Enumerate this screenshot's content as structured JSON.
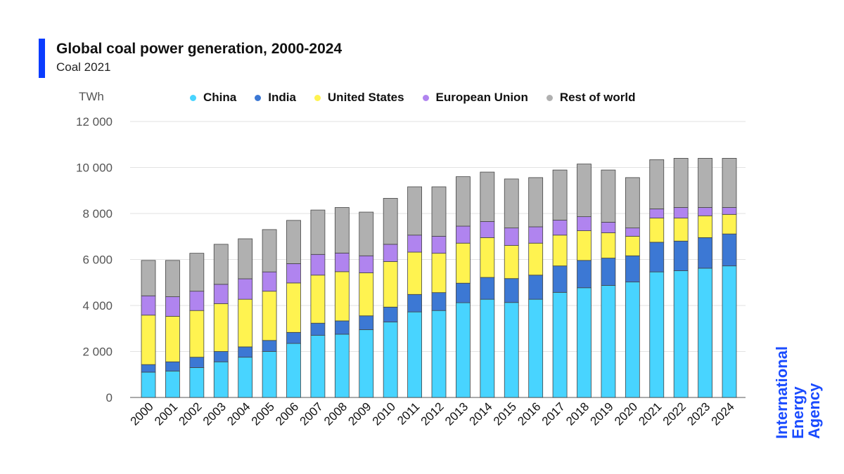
{
  "header": {
    "title": "Global coal power generation, 2000-2024",
    "subtitle": "Coal 2021"
  },
  "logo": {
    "line1": "International",
    "line2": "Energy Agency",
    "color": "#1a4bff"
  },
  "chart_data": {
    "type": "bar",
    "stacked": true,
    "title": "Global coal power generation, 2000-2024",
    "subtitle": "Coal 2021",
    "ylabel": "TWh",
    "ylim": [
      0,
      12000
    ],
    "yticks": [
      0,
      2000,
      4000,
      6000,
      8000,
      10000,
      12000
    ],
    "ytick_labels": [
      "0",
      "2 000",
      "4 000",
      "6 000",
      "8 000",
      "10 000",
      "12 000"
    ],
    "grid": true,
    "legend_position": "top",
    "categories": [
      "2000",
      "2001",
      "2002",
      "2003",
      "2004",
      "2005",
      "2006",
      "2007",
      "2008",
      "2009",
      "2010",
      "2011",
      "2012",
      "2013",
      "2014",
      "2015",
      "2016",
      "2017",
      "2018",
      "2019",
      "2020",
      "2021",
      "2022",
      "2023",
      "2024"
    ],
    "series": [
      {
        "name": "China",
        "color": "#48d4ff",
        "values": [
          1100,
          1150,
          1300,
          1550,
          1750,
          2000,
          2350,
          2700,
          2750,
          2950,
          3280,
          3720,
          3780,
          4120,
          4270,
          4130,
          4270,
          4570,
          4770,
          4870,
          5020,
          5460,
          5510,
          5620,
          5720
        ]
      },
      {
        "name": "India",
        "color": "#3c78d4",
        "values": [
          330,
          400,
          450,
          450,
          450,
          480,
          480,
          530,
          580,
          600,
          650,
          760,
          780,
          850,
          950,
          1040,
          1050,
          1150,
          1190,
          1190,
          1140,
          1290,
          1290,
          1330,
          1390
        ]
      },
      {
        "name": "United States",
        "color": "#fff350",
        "values": [
          2150,
          1980,
          2030,
          2080,
          2070,
          2140,
          2150,
          2090,
          2140,
          1870,
          1980,
          1840,
          1710,
          1740,
          1730,
          1440,
          1390,
          1340,
          1290,
          1100,
          850,
          1050,
          1000,
          950,
          850
        ]
      },
      {
        "name": "European Union",
        "color": "#b084ef",
        "values": [
          840,
          850,
          840,
          840,
          890,
          840,
          840,
          900,
          810,
          740,
          750,
          740,
          740,
          740,
          700,
          760,
          710,
          650,
          610,
          460,
          360,
          400,
          460,
          360,
          300
        ]
      },
      {
        "name": "Rest of world",
        "color": "#b0b0b0",
        "values": [
          1540,
          1580,
          1650,
          1740,
          1740,
          1840,
          1880,
          1930,
          1980,
          1900,
          2000,
          2100,
          2150,
          2150,
          2150,
          2130,
          2140,
          2180,
          2290,
          2270,
          2190,
          2140,
          2140,
          2140,
          2140
        ]
      }
    ]
  }
}
